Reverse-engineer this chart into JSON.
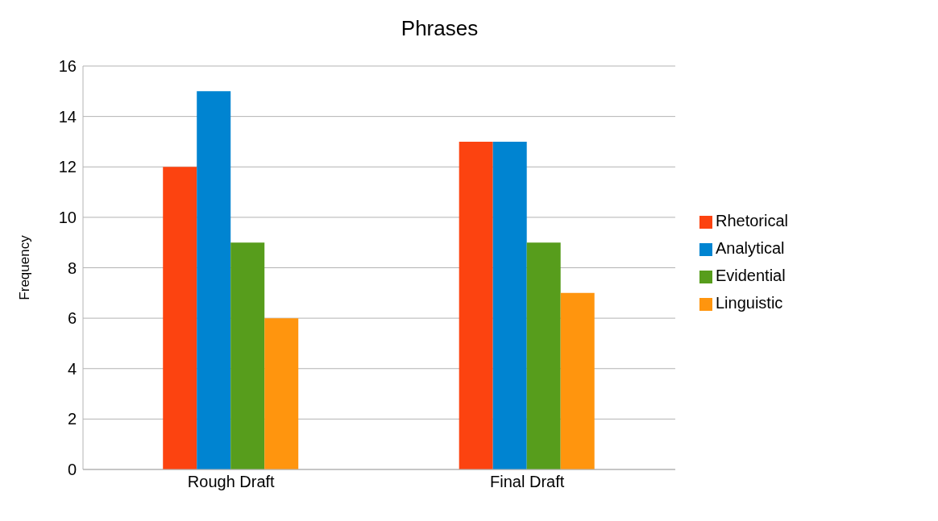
{
  "chart_data": {
    "type": "bar",
    "title": "Phrases",
    "ylabel": "Frequency",
    "categories": [
      "Rough Draft",
      "Final Draft"
    ],
    "series": [
      {
        "name": "Rhetorical",
        "color": "#fc4310",
        "values": [
          12,
          13
        ]
      },
      {
        "name": "Analytical",
        "color": "#0084d1",
        "values": [
          15,
          13
        ]
      },
      {
        "name": "Evidential",
        "color": "#579d1c",
        "values": [
          9,
          9
        ]
      },
      {
        "name": "Linguistic",
        "color": "#ff950e",
        "values": [
          6,
          7
        ]
      }
    ],
    "ylim": [
      0,
      16
    ],
    "yticks": [
      0,
      2,
      4,
      6,
      8,
      10,
      12,
      14,
      16
    ],
    "grid": "y",
    "legend": "right"
  }
}
